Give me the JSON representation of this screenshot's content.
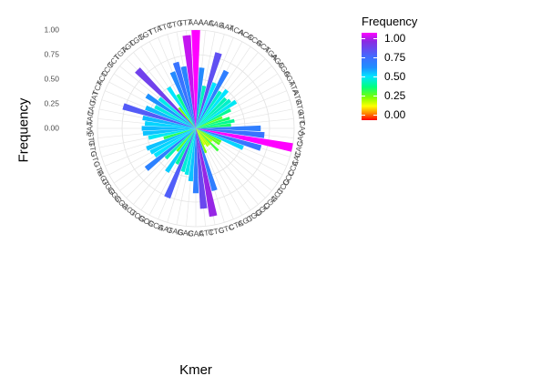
{
  "chart_data": {
    "type": "bar",
    "coordinate_system": "polar",
    "title": "",
    "xlabel": "Kmer",
    "ylabel": "Frequency",
    "ylim": [
      0,
      1
    ],
    "y_ticks": [
      "0.00",
      "0.25",
      "0.50",
      "0.75",
      "1.00"
    ],
    "grid": true,
    "legend": {
      "title": "Frequency",
      "position": "right",
      "ticks": [
        "1.00",
        "0.75",
        "0.50",
        "0.25",
        "0.00"
      ],
      "tick_values": [
        1.0,
        0.75,
        0.5,
        0.25,
        0.0
      ]
    },
    "categories": [
      "AAA",
      "AAC",
      "AAG",
      "AAT",
      "ACA",
      "ACC",
      "ACG",
      "ACT",
      "AGA",
      "AGC",
      "AGG",
      "AGT",
      "ATA",
      "ATC",
      "ATG",
      "ATT",
      "CAA",
      "CAC",
      "CAG",
      "CAT",
      "CCA",
      "CCC",
      "CCG",
      "CCT",
      "CGA",
      "CGC",
      "CGG",
      "CGT",
      "CTA",
      "CTC",
      "CTG",
      "CTT",
      "GAA",
      "GAC",
      "GAG",
      "GAT",
      "GCA",
      "GCC",
      "GCG",
      "GCT",
      "GGA",
      "GGC",
      "GGG",
      "GGT",
      "GTA",
      "GTC",
      "GTG",
      "GTT",
      "TAA",
      "TAC",
      "TAG",
      "TAT",
      "TCA",
      "TCC",
      "TCG",
      "TCT",
      "TGA",
      "TGC",
      "TGG",
      "TGT",
      "TTA",
      "TTC",
      "TTG",
      "TTT"
    ],
    "values": [
      1.0,
      0.62,
      0.44,
      0.8,
      0.5,
      0.66,
      0.45,
      0.5,
      0.43,
      0.45,
      0.49,
      0.4,
      0.29,
      0.36,
      0.4,
      0.36,
      0.66,
      0.7,
      1.0,
      0.69,
      0.52,
      0.29,
      0.29,
      0.21,
      0.32,
      0.22,
      0.22,
      0.19,
      0.27,
      0.66,
      0.91,
      0.82,
      0.66,
      0.54,
      0.48,
      0.46,
      0.76,
      0.41,
      0.53,
      0.3,
      0.43,
      0.65,
      0.5,
      0.52,
      0.54,
      0.34,
      0.49,
      0.54,
      0.55,
      0.52,
      0.55,
      0.77,
      0.55,
      0.47,
      0.6,
      0.48,
      0.84,
      0.27,
      0.5,
      0.39,
      0.62,
      0.7,
      0.64,
      0.95
    ]
  }
}
